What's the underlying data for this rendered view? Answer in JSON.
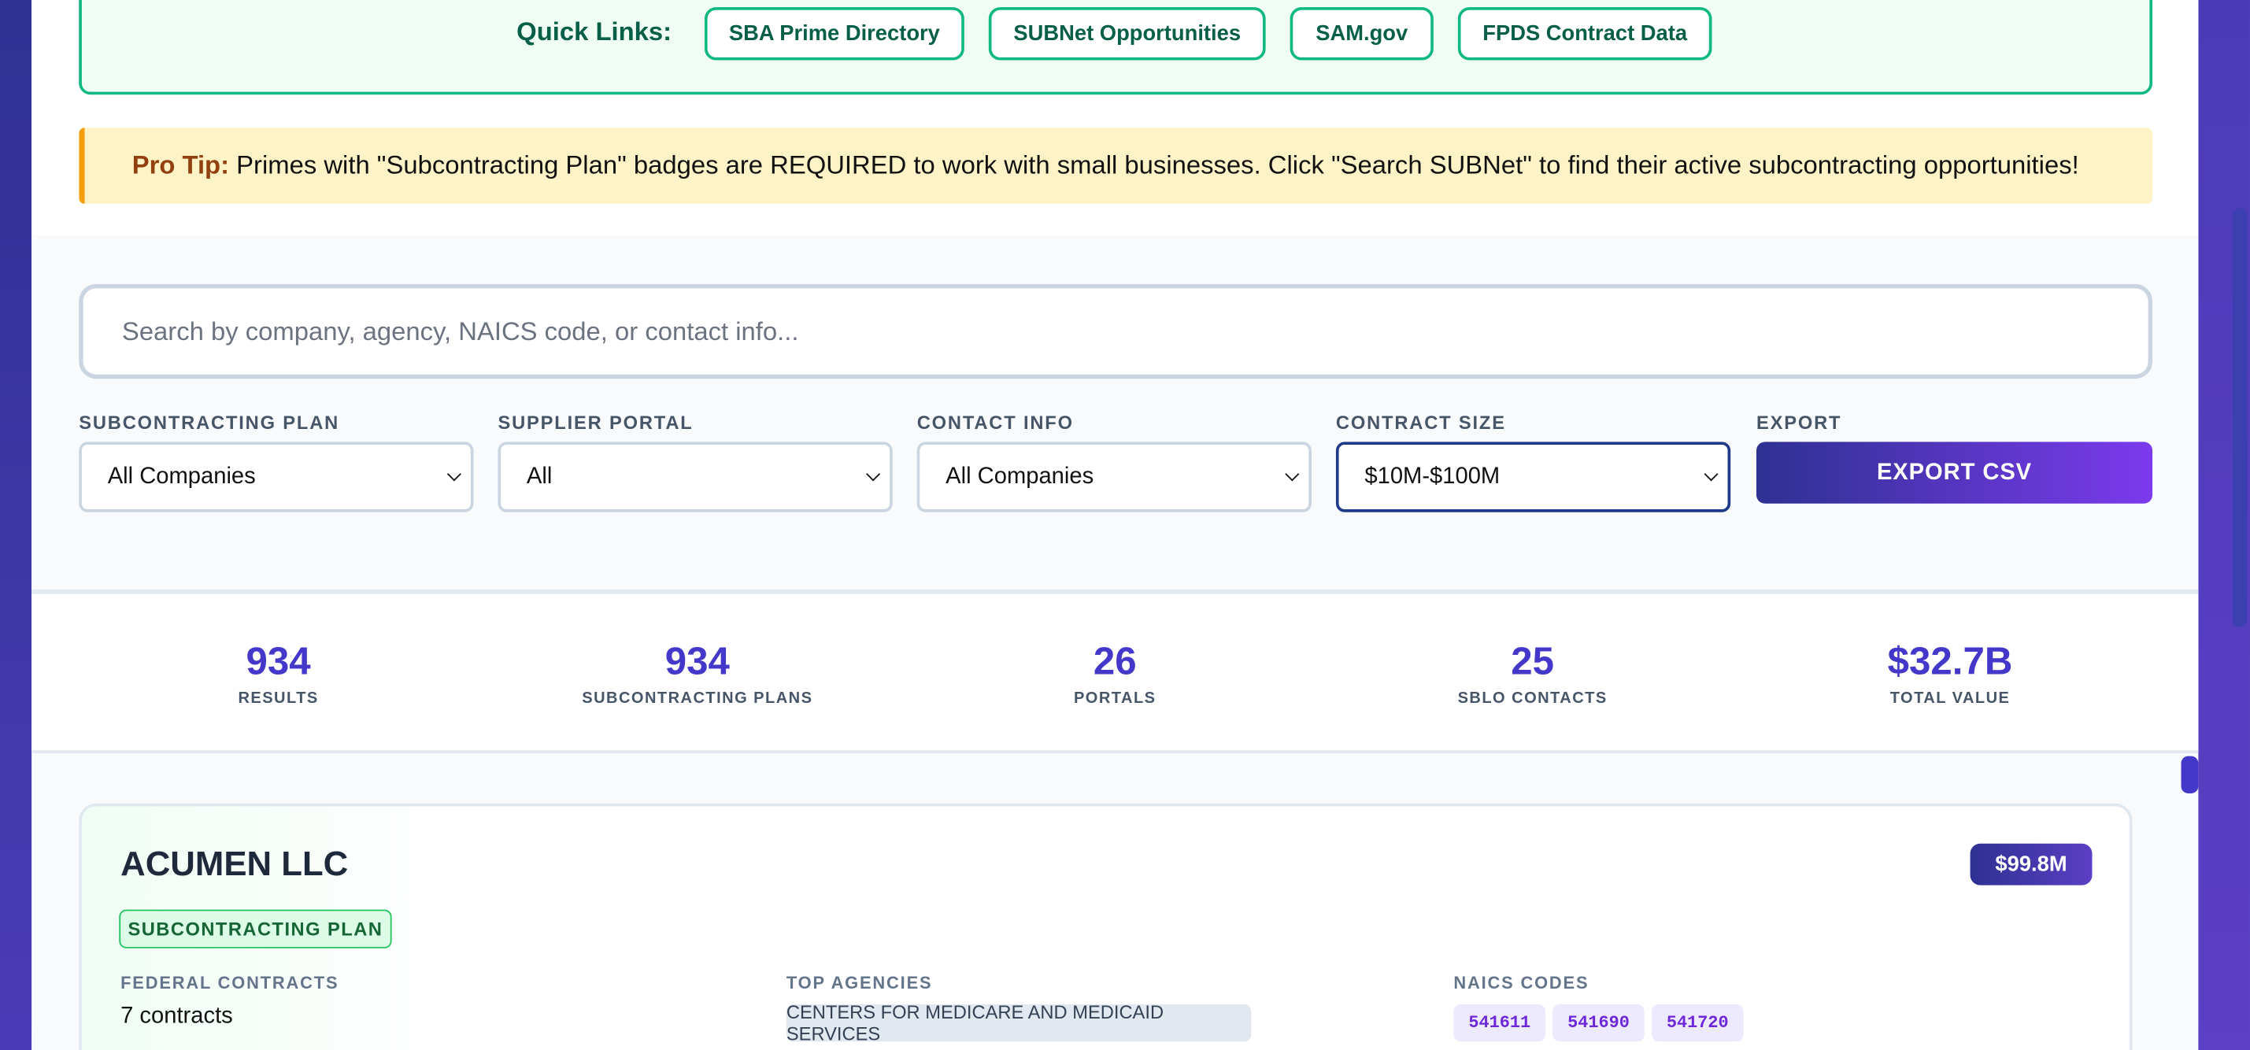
{
  "quick_links": {
    "label": "Quick Links:",
    "links": [
      "SBA Prime Directory",
      "SUBNet Opportunities",
      "SAM.gov",
      "FPDS Contract Data"
    ]
  },
  "pro_tip": {
    "label": "Pro Tip:",
    "text": "Primes with \"Subcontracting Plan\" badges are REQUIRED to work with small businesses. Click \"Search SUBNet\" to find their active subcontracting opportunities!"
  },
  "search": {
    "placeholder": "Search by company, agency, NAICS code, or contact info..."
  },
  "filters": [
    {
      "label": "SUBCONTRACTING PLAN",
      "value": "All Companies"
    },
    {
      "label": "SUPPLIER PORTAL",
      "value": "All"
    },
    {
      "label": "CONTACT INFO",
      "value": "All Companies"
    },
    {
      "label": "CONTRACT SIZE",
      "value": "$10M-$100M"
    }
  ],
  "export": {
    "label": "EXPORT",
    "button": "EXPORT CSV"
  },
  "stats": [
    {
      "value": "934",
      "label": "RESULTS"
    },
    {
      "value": "934",
      "label": "SUBCONTRACTING PLANS"
    },
    {
      "value": "26",
      "label": "PORTALS"
    },
    {
      "value": "25",
      "label": "SBLO CONTACTS"
    },
    {
      "value": "$32.7B",
      "label": "TOTAL VALUE"
    }
  ],
  "card": {
    "name": "ACUMEN LLC",
    "amount": "$99.8M",
    "badge": "SUBCONTRACTING PLAN",
    "contracts_label": "FEDERAL CONTRACTS",
    "contracts": "7 contracts",
    "agencies_label": "TOP AGENCIES",
    "agencies": [
      "CENTERS FOR MEDICARE AND MEDICAID SERVICES"
    ],
    "naics_label": "NAICS CODES",
    "naics": [
      "541611",
      "541690",
      "541720"
    ]
  }
}
